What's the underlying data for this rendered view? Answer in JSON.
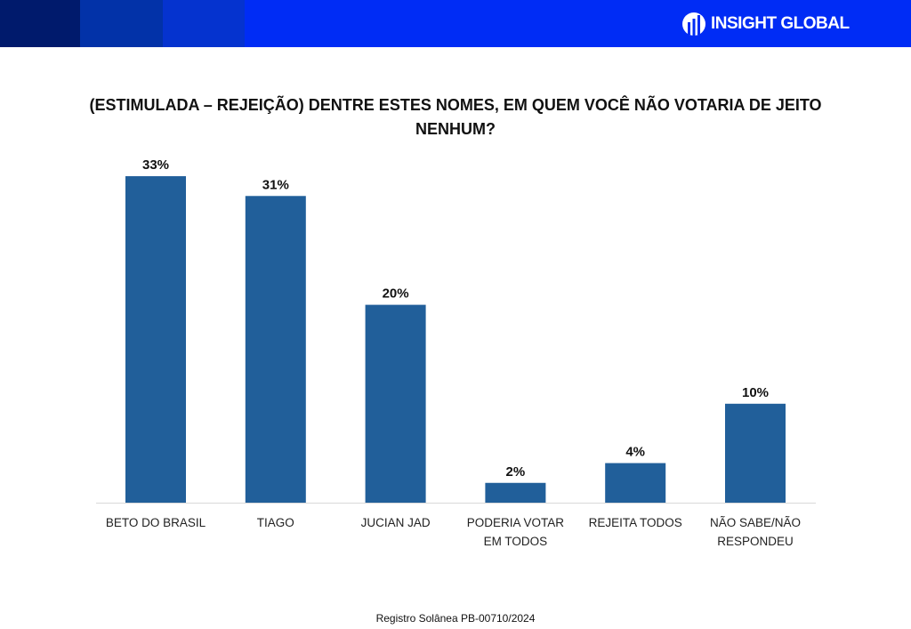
{
  "header": {
    "brand": "INSIGHT GLOBAL"
  },
  "chart_data": {
    "type": "bar",
    "title": "(ESTIMULADA – REJEIÇÃO) DENTRE ESTES NOMES, EM QUEM VOCÊ NÃO VOTARIA DE JEITO NENHUM?",
    "categories": [
      [
        "BETO DO BRASIL"
      ],
      [
        "TIAGO"
      ],
      [
        "JUCIAN JAD"
      ],
      [
        "PODERIA VOTAR",
        "EM TODOS"
      ],
      [
        "REJEITA TODOS"
      ],
      [
        "NÃO SABE/NÃO",
        "RESPONDEU"
      ]
    ],
    "values": [
      33,
      31,
      20,
      2,
      4,
      10
    ],
    "data_labels": [
      "33%",
      "31%",
      "20%",
      "2%",
      "4%",
      "10%"
    ],
    "ylim": [
      0,
      35
    ],
    "color": "#215f9a",
    "grid": false
  },
  "footer": "Registro Solânea PB-00710/2024"
}
